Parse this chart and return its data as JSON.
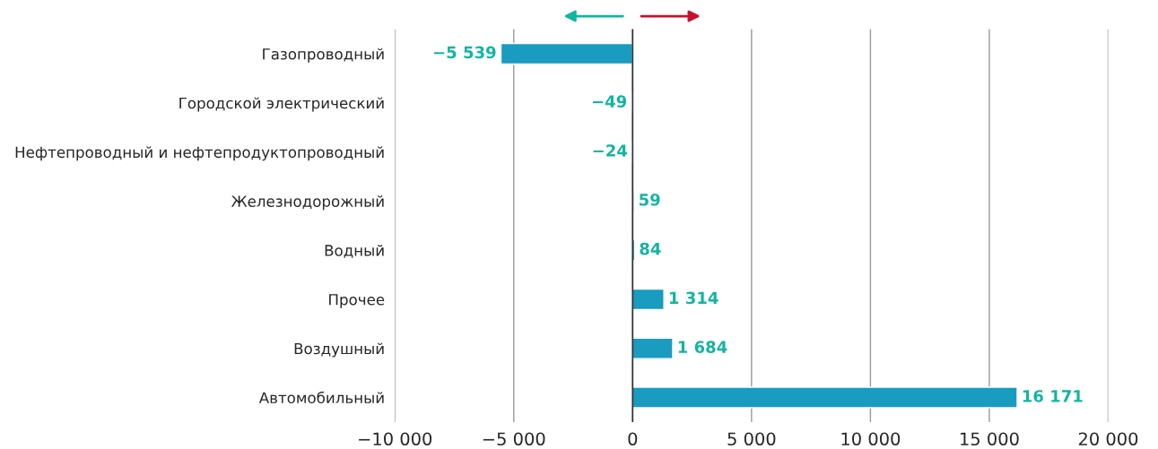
{
  "chart_data": {
    "type": "bar",
    "orientation": "horizontal",
    "categories": [
      "Газопроводный",
      "Городской электрический",
      "Нефтепроводный и нефтепродуктопроводный",
      "Железнодорожный",
      "Водный",
      "Прочее",
      "Воздушный",
      "Автомобильный"
    ],
    "values": [
      -5539,
      -49,
      -24,
      59,
      84,
      1314,
      1684,
      16171
    ],
    "value_labels": [
      "−5 539",
      "−49",
      "−24",
      "59",
      "84",
      "1 314",
      "1 684",
      "16 171"
    ],
    "color": "#1a9bc0",
    "xlim": [
      -10000,
      20000
    ],
    "xticks": [
      {
        "value": -10000,
        "label": "−10 000"
      },
      {
        "value": -5000,
        "label": "−5 000"
      },
      0,
      {
        "value": 5000,
        "label": "5 000"
      },
      {
        "value": 10000,
        "label": "10 000"
      },
      {
        "value": 15000,
        "label": "15 000"
      },
      {
        "value": 20000,
        "label": "20 000"
      }
    ],
    "grid": "x",
    "ref_lines": [
      {
        "axis": "x",
        "value": 0,
        "color": "#333333"
      }
    ]
  }
}
